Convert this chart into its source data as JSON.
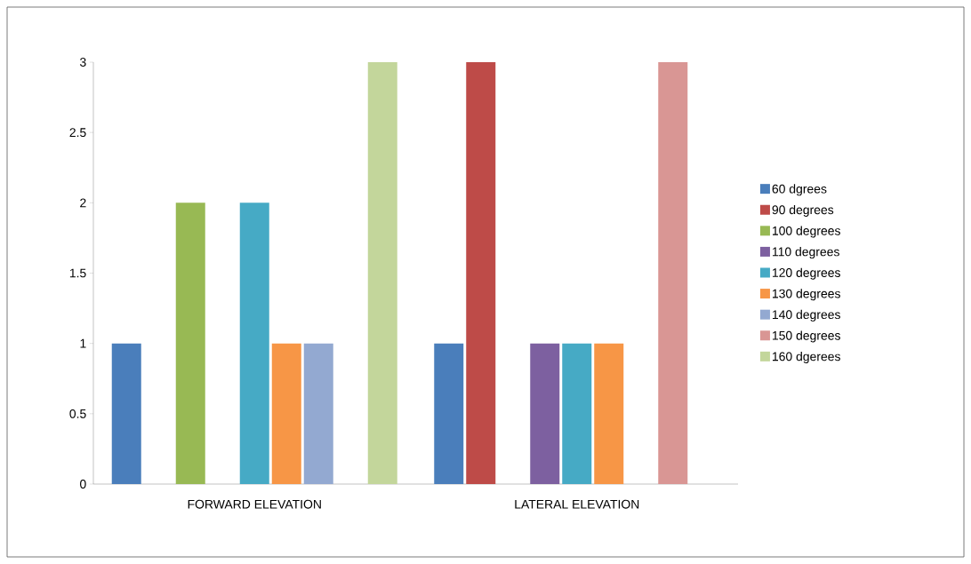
{
  "chart_data": {
    "type": "bar",
    "categories": [
      "FORWARD ELEVATION",
      "LATERAL ELEVATION"
    ],
    "series": [
      {
        "name": "60 dgrees",
        "color": "#4a7ebb",
        "values": [
          1,
          1
        ]
      },
      {
        "name": "90 degrees",
        "color": "#be4b48",
        "values": [
          0,
          3
        ]
      },
      {
        "name": "100 degrees",
        "color": "#98b954",
        "values": [
          2,
          0
        ]
      },
      {
        "name": "110 degrees",
        "color": "#7d60a0",
        "values": [
          0,
          1
        ]
      },
      {
        "name": "120 degrees",
        "color": "#46aac5",
        "values": [
          2,
          1
        ]
      },
      {
        "name": "130 degrees",
        "color": "#f79646",
        "values": [
          1,
          1
        ]
      },
      {
        "name": "140 degrees",
        "color": "#93a9d1",
        "values": [
          1,
          0
        ]
      },
      {
        "name": "150 degrees",
        "color": "#d99694",
        "values": [
          0,
          3
        ]
      },
      {
        "name": "160 dgerees",
        "color": "#c3d69b",
        "values": [
          3,
          0
        ]
      }
    ],
    "ylim": [
      0,
      3
    ],
    "yticks": [
      0,
      0.5,
      1,
      1.5,
      2,
      2.5,
      3
    ],
    "grid": false,
    "legend": "right"
  }
}
